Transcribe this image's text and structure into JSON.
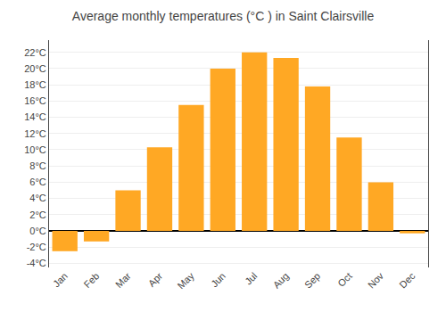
{
  "chart_data": {
    "type": "bar",
    "title": "Average monthly temperatures (°C ) in Saint Clairsville",
    "categories": [
      "Jan",
      "Feb",
      "Mar",
      "Apr",
      "May",
      "Jun",
      "Jul",
      "Aug",
      "Sep",
      "Oct",
      "Nov",
      "Dec"
    ],
    "values": [
      -2.5,
      -1.3,
      5.0,
      10.3,
      15.5,
      20.0,
      22.0,
      21.3,
      17.8,
      11.5,
      6.0,
      -0.3
    ],
    "color": "#FFA824",
    "ylim": [
      -4.5,
      23.5
    ],
    "yticks": [
      {
        "value": -4,
        "label": "-4°C"
      },
      {
        "value": -2,
        "label": "-2°C"
      },
      {
        "value": 0,
        "label": "0°C"
      },
      {
        "value": 2,
        "label": "2°C"
      },
      {
        "value": 4,
        "label": "4°C"
      },
      {
        "value": 6,
        "label": "6°C"
      },
      {
        "value": 8,
        "label": "8°C"
      },
      {
        "value": 10,
        "label": "10°C"
      },
      {
        "value": 12,
        "label": "12°C"
      },
      {
        "value": 14,
        "label": "14°C"
      },
      {
        "value": 16,
        "label": "16°C"
      },
      {
        "value": 18,
        "label": "18°C"
      },
      {
        "value": 20,
        "label": "20°C"
      },
      {
        "value": 22,
        "label": "22°C"
      }
    ],
    "grid": true
  }
}
